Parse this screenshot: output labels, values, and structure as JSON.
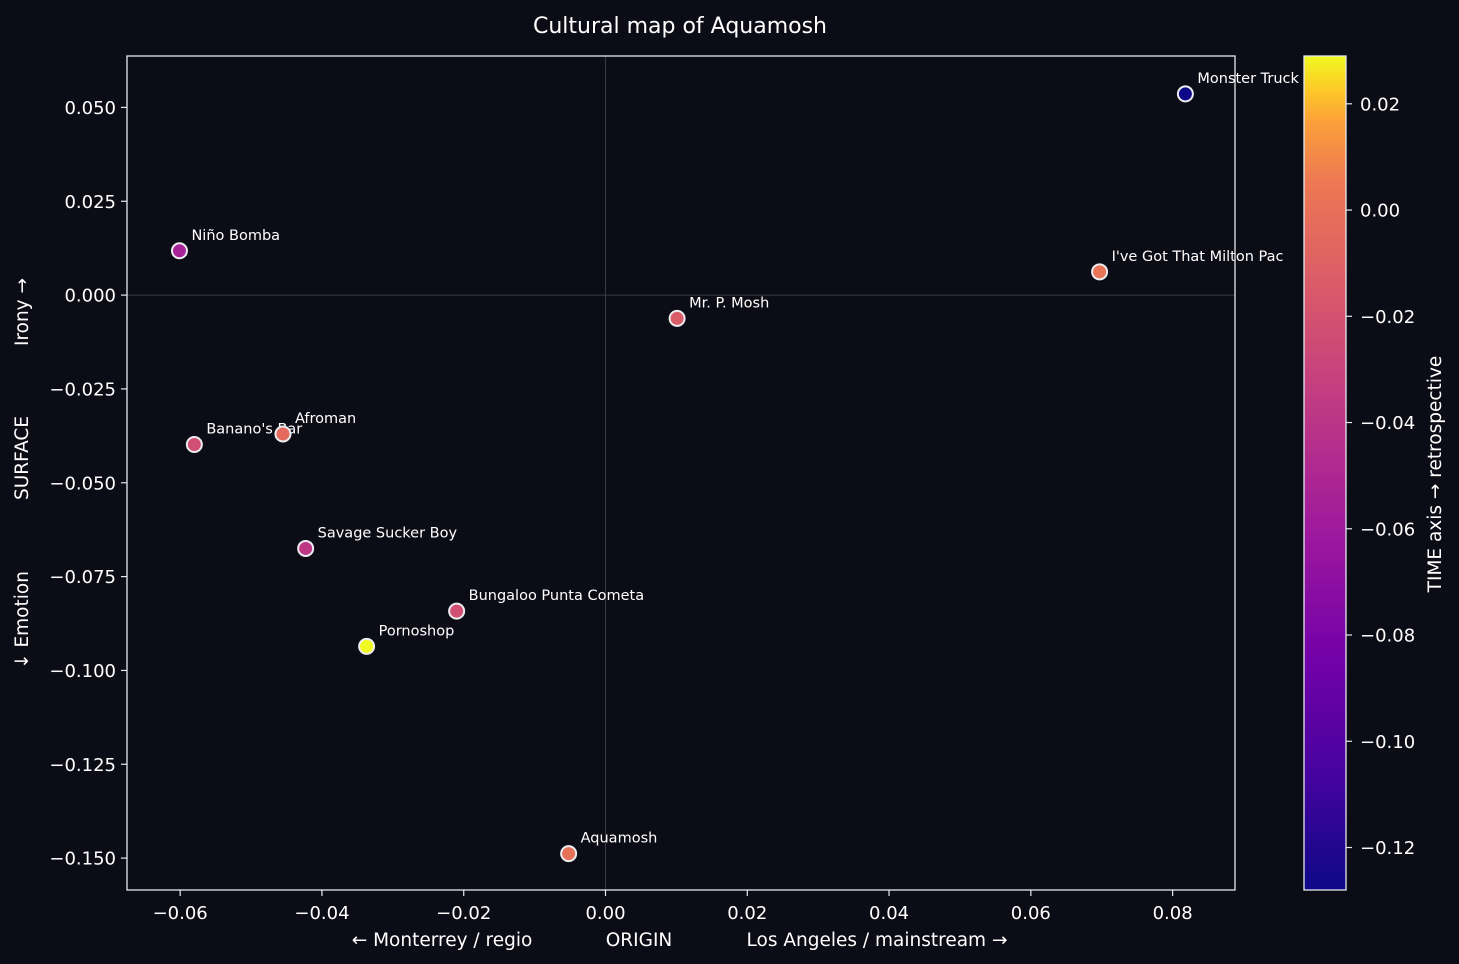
{
  "chart_data": {
    "type": "scatter",
    "title": "Cultural map of Aquamosh",
    "xlabel": {
      "left": "←  Monterrey / regio",
      "center": "ORIGIN",
      "right": "Los Angeles / mainstream  →"
    },
    "ylabel": {
      "bottom": "↓  Emotion",
      "center": "SURFACE",
      "top": "Irony  →"
    },
    "colorbar_label": "TIME axis  →  retrospective",
    "xlim": [
      -0.0675,
      0.0888
    ],
    "ylim": [
      -0.1585,
      0.0637
    ],
    "clim": [
      -0.128,
      0.029
    ],
    "x_ticks": [
      -0.06,
      -0.04,
      -0.02,
      0.0,
      0.02,
      0.04,
      0.06,
      0.08
    ],
    "x_tick_labels": [
      "−0.06",
      "−0.04",
      "−0.02",
      "0.00",
      "0.02",
      "0.04",
      "0.06",
      "0.08"
    ],
    "y_ticks": [
      0.05,
      0.025,
      0.0,
      -0.025,
      -0.05,
      -0.075,
      -0.1,
      -0.125,
      -0.15
    ],
    "y_tick_labels": [
      "0.050",
      "0.025",
      "0.000",
      "−0.025",
      "−0.050",
      "−0.075",
      "−0.100",
      "−0.125",
      "−0.150"
    ],
    "c_ticks": [
      0.02,
      0.0,
      -0.02,
      -0.04,
      -0.06,
      -0.08,
      -0.1,
      -0.12
    ],
    "c_tick_labels": [
      "0.02",
      "0.00",
      "−0.02",
      "−0.04",
      "−0.06",
      "−0.08",
      "−0.10",
      "−0.12"
    ],
    "reference_lines": {
      "x": 0,
      "y": 0
    },
    "grid": false,
    "colormap": "plasma",
    "points": [
      {
        "label": "Monster Truck",
        "x": 0.0818,
        "y": 0.0536,
        "c": -0.128
      },
      {
        "label": "Niño Bomba",
        "x": -0.0601,
        "y": 0.0118,
        "c": -0.054
      },
      {
        "label": "I've Got That Milton Pac",
        "x": 0.0697,
        "y": 0.0062,
        "c": 0.002
      },
      {
        "label": "Mr. P. Mosh",
        "x": 0.0101,
        "y": -0.0062,
        "c": -0.014
      },
      {
        "label": "Banano's Bar",
        "x": -0.058,
        "y": -0.0398,
        "c": -0.022
      },
      {
        "label": "Afroman",
        "x": -0.0455,
        "y": -0.037,
        "c": -0.004
      },
      {
        "label": "Savage Sucker Boy",
        "x": -0.0423,
        "y": -0.0675,
        "c": -0.038
      },
      {
        "label": "Bungaloo Punta Cometa",
        "x": -0.021,
        "y": -0.0842,
        "c": -0.022
      },
      {
        "label": "Pornoshop",
        "x": -0.0337,
        "y": -0.0936,
        "c": 0.029
      },
      {
        "label": "Aquamosh",
        "x": -0.0052,
        "y": -0.1488,
        "c": 0.0
      }
    ]
  },
  "colors": {
    "background": "#0c0c16",
    "frame": "#e8e8ee",
    "reference_line": "#3a3a46",
    "text": "#ffffff",
    "marker_edge": "#ececf0"
  }
}
